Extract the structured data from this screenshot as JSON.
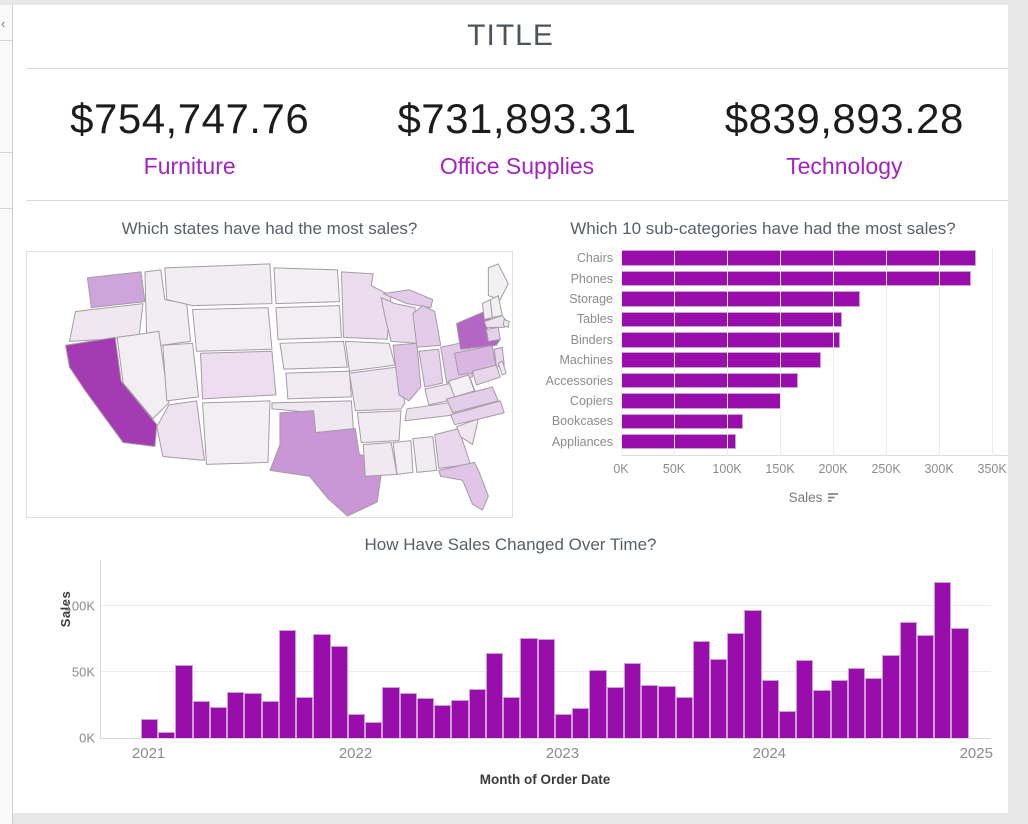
{
  "ui": {
    "collapse_chevron": "‹"
  },
  "header": {
    "title": "TITLE"
  },
  "kpis": [
    {
      "value": "$754,747.76",
      "label": "Furniture"
    },
    {
      "value": "$731,893.31",
      "label": "Office Supplies"
    },
    {
      "value": "$839,893.28",
      "label": "Technology"
    }
  ],
  "theme": {
    "bar_purple": "#9a0dad",
    "kpi_label_purple": "#a224c0",
    "background_grey": "#e8e8e8"
  },
  "chart_data": [
    {
      "id": "subcategory_sales",
      "type": "bar",
      "orientation": "horizontal",
      "title": "Which 10 sub-categories have had the most sales?",
      "categories": [
        "Chairs",
        "Phones",
        "Storage",
        "Tables",
        "Binders",
        "Machines",
        "Accessories",
        "Copiers",
        "Bookcases",
        "Appliances"
      ],
      "values": [
        335,
        330,
        225,
        208,
        207,
        189,
        167,
        151,
        115,
        108
      ],
      "value_unit": "thousand USD (estimated from axis)",
      "xlabel": "Sales",
      "sort_indicator": "descending",
      "x_ticks": [
        "0K",
        "50K",
        "100K",
        "150K",
        "200K",
        "250K",
        "300K",
        "350K"
      ],
      "x_tick_values": [
        0,
        50,
        100,
        150,
        200,
        250,
        300,
        350
      ],
      "xlim": [
        0,
        365
      ],
      "grid": "vertical"
    },
    {
      "id": "sales_over_time",
      "type": "bar",
      "title": "How Have Sales Changed Over Time?",
      "xlabel": "Month of Order Date",
      "ylabel": "Sales",
      "x_start": "2021-01",
      "frequency": "monthly",
      "values": [
        14.2,
        4.5,
        55.7,
        28.3,
        23.6,
        34.6,
        33.9,
        27.9,
        81.8,
        31.4,
        78.6,
        69.5,
        18.2,
        12.0,
        38.7,
        34.2,
        30.1,
        24.8,
        28.8,
        36.9,
        64.6,
        31.4,
        76.0,
        74.9,
        18.5,
        23.0,
        51.7,
        38.8,
        57.0,
        40.3,
        39.3,
        31.1,
        73.4,
        59.7,
        79.4,
        97.0,
        44.0,
        20.3,
        58.9,
        36.5,
        44.3,
        53.0,
        45.3,
        63.1,
        87.9,
        77.8,
        118.4,
        83.8
      ],
      "value_unit": "thousand USD (estimated from axis)",
      "y_ticks": [
        "0K",
        "50K",
        "100K"
      ],
      "y_tick_values": [
        0,
        50,
        100
      ],
      "ylim": [
        0,
        135
      ],
      "x_tick_labels": [
        "2021",
        "2022",
        "2023",
        "2024",
        "2025"
      ],
      "grid": "horizontal"
    },
    {
      "id": "state_sales_map",
      "type": "heatmap",
      "subtype": "choropleth-us-states",
      "title": "Which states have had the most sales?",
      "legend": "none visible; darker purple = more sales",
      "state_fills": {
        "WA": "#cfa4db",
        "OR": "#f0e7f1",
        "CA": "#a43bb2",
        "NV": "#f2eef2",
        "ID": "#f1edf1",
        "MT": "#f1eef1",
        "WY": "#f2eff2",
        "UT": "#f1ecf1",
        "CO": "#ecdeef",
        "AZ": "#eee2f0",
        "NM": "#f2eff2",
        "ND": "#f2f0f2",
        "SD": "#f2eff2",
        "NE": "#f1eef1",
        "KS": "#f1ebf1",
        "OK": "#f0e8f1",
        "TX": "#c996d6",
        "MN": "#ebdcee",
        "IA": "#f1ecf1",
        "MO": "#efe5f0",
        "AR": "#f1ecf1",
        "LA": "#f0e9f1",
        "WI": "#eadaee",
        "IL": "#dfc3e6",
        "MI_UP": "#e3cbe9",
        "MI": "#e3cbe9",
        "IN": "#e7d2eb",
        "OH": "#e2c9e9",
        "KY": "#efe4f0",
        "TN": "#eee1ef",
        "MS": "#f2eef2",
        "AL": "#f1ecf1",
        "GA": "#e9d7ed",
        "FL": "#e0c5e8",
        "SC": "#f0e7f1",
        "NC": "#e7d3ec",
        "VA": "#e4cdea",
        "WV": "#f3f1f3",
        "PA": "#d9b6e2",
        "NY": "#b366c3",
        "NJ": "#e8d4ec",
        "MD": "#e9d6ed",
        "DE": "#f0e8f1",
        "ME": "#f2f0f2",
        "VT": "#f1eef1",
        "NH": "#f2f0f2",
        "MA": "#eee3f0",
        "CT": "#e6d0eb",
        "RI": "#f0e8f1"
      }
    }
  ]
}
